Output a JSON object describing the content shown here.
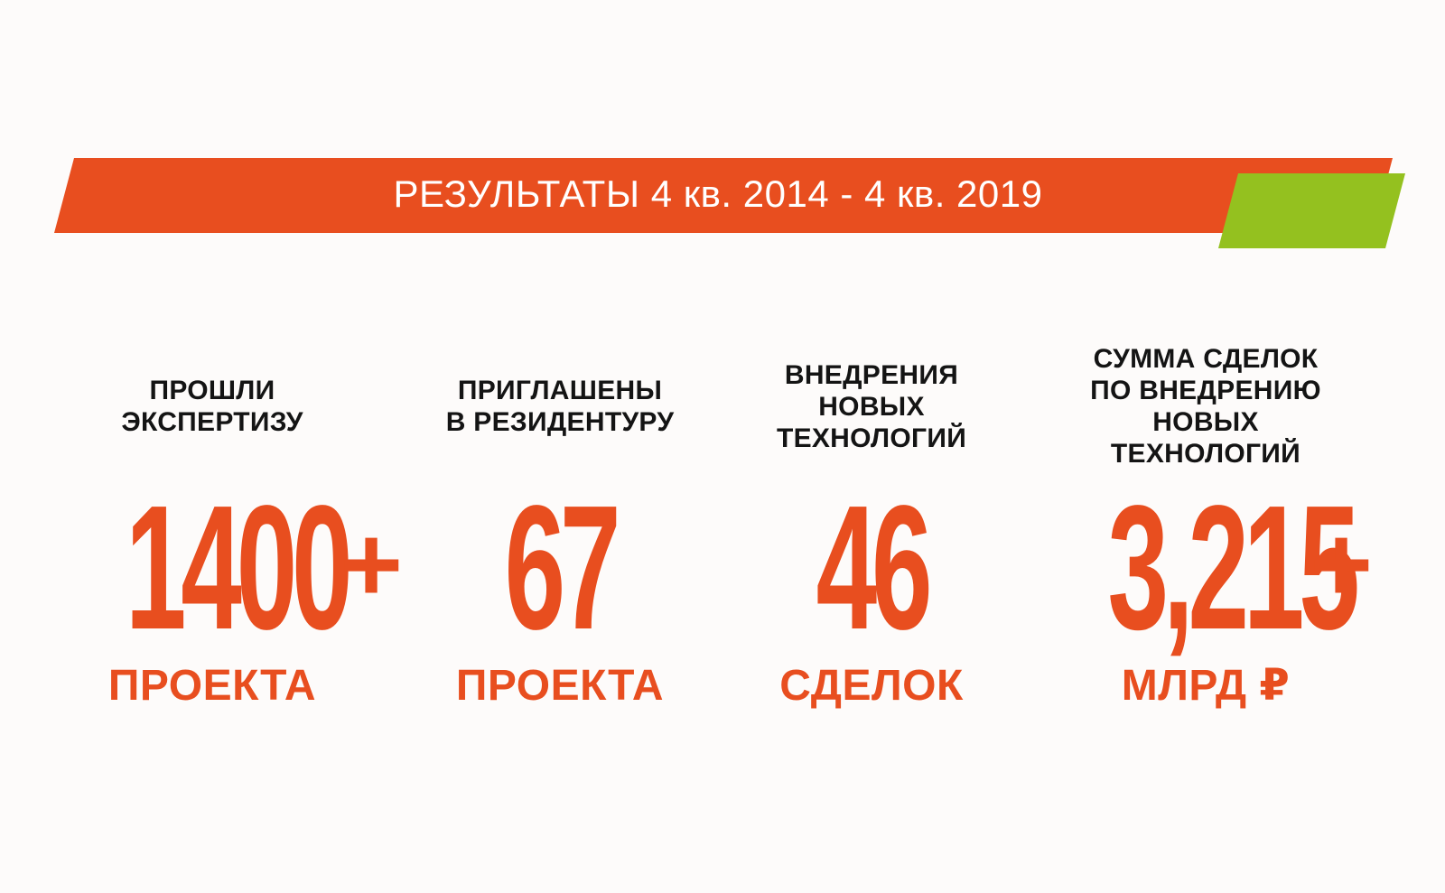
{
  "colors": {
    "background": "#fdfbfa",
    "accent_orange": "#e84e1f",
    "accent_green": "#94c11f",
    "label_text": "#141414",
    "banner_text": "#ffffff"
  },
  "banner": {
    "title": "РЕЗУЛЬТАТЫ 4 кв. 2014 - 4 кв. 2019"
  },
  "stats": [
    {
      "label": "ПРОШЛИ\nЭКСПЕРТИЗУ",
      "value": "1400",
      "plus": "+",
      "unit": "ПРОЕКТА"
    },
    {
      "label": "ПРИГЛАШЕНЫ\nВ РЕЗИДЕНТУРУ",
      "value": "67",
      "plus": "",
      "unit": "ПРОЕКТА"
    },
    {
      "label": "ВНЕДРЕНИЯ\nНОВЫХ\nТЕХНОЛОГИЙ",
      "value": "46",
      "plus": "",
      "unit": "СДЕЛОК"
    },
    {
      "label": "СУММА СДЕЛОК\nПО ВНЕДРЕНИЮ\nНОВЫХ\nТЕХНОЛОГИЙ",
      "value": "3,215",
      "plus": "+",
      "unit": "МЛРД ₽"
    }
  ]
}
